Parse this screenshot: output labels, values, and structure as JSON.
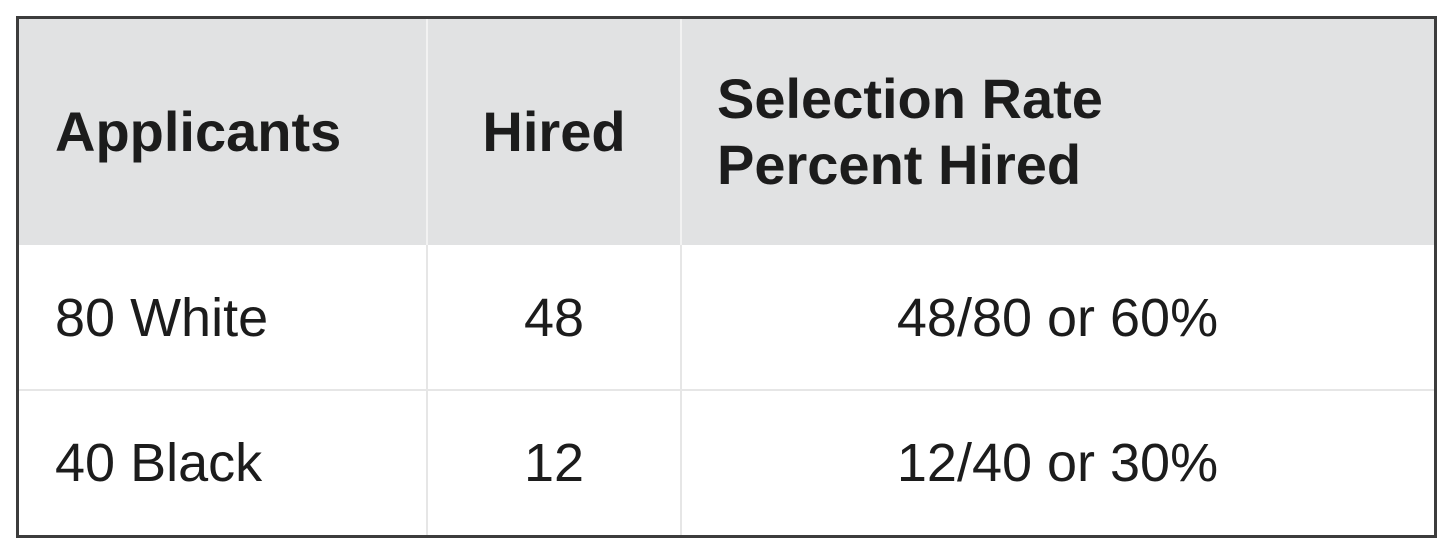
{
  "table": {
    "header": [
      "Applicants",
      "Hired",
      "Selection Rate\nPercent Hired"
    ],
    "rows": [
      [
        "80 White",
        "48",
        "48/80 or 60%"
      ],
      [
        "40 Black",
        "12",
        "12/40 or 30%"
      ]
    ]
  }
}
